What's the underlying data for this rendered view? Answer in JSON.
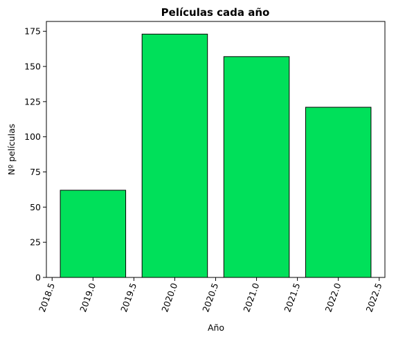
{
  "chart_data": {
    "type": "bar",
    "title": "Películas cada año",
    "xlabel": "Año",
    "ylabel": "Nº películas",
    "x": [
      2019,
      2020,
      2021,
      2022
    ],
    "values": [
      62,
      173,
      157,
      121
    ],
    "bar_width": 0.8,
    "bar_color": "#00e05a",
    "bar_edge_color": "#000000",
    "xlim": [
      2018.43,
      2022.57
    ],
    "ylim": [
      0,
      182
    ],
    "xticks": [
      2018.5,
      2019.0,
      2019.5,
      2020.0,
      2020.5,
      2021.0,
      2021.5,
      2022.0,
      2022.5
    ],
    "xtick_labels": [
      "2018.5",
      "2019.0",
      "2019.5",
      "2020.0",
      "2020.5",
      "2021.0",
      "2021.5",
      "2022.0",
      "2022.5"
    ],
    "yticks": [
      0,
      25,
      50,
      75,
      100,
      125,
      150,
      175
    ],
    "ytick_labels": [
      "0",
      "25",
      "50",
      "75",
      "100",
      "125",
      "150",
      "175"
    ],
    "xtick_rotation": 70,
    "grid": false,
    "legend": false
  }
}
